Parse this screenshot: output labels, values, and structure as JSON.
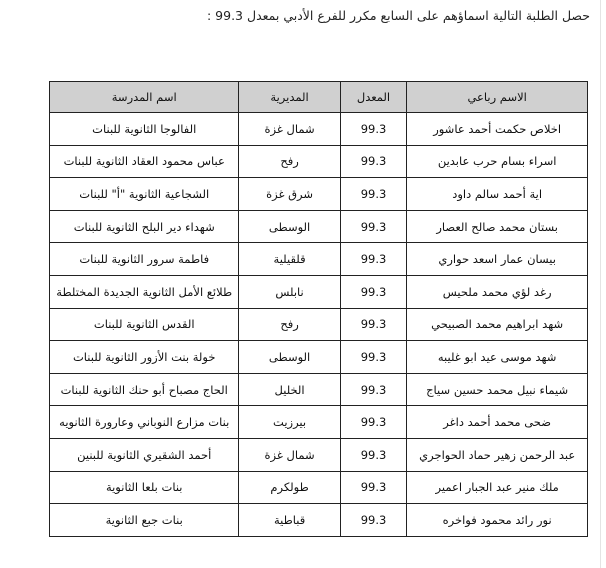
{
  "title": "حصل الطلبة التالية اسماؤهم على السابع مكرر للفرع الأدبي بمعدل 99.3 :",
  "table": {
    "headers": [
      "الاسم رباعي",
      "المعدل",
      "المديرية",
      "اسم المدرسة"
    ],
    "rows": [
      [
        "اخلاص حكمت أحمد عاشور",
        "99.3",
        "شمال غزة",
        "الفالوجا الثانوية للبنات"
      ],
      [
        "اسراء بسام حرب عابدين",
        "99.3",
        "رفح",
        "عباس محمود العقاد الثانوية للبنات"
      ],
      [
        "اية أحمد سالم داود",
        "99.3",
        "شرق غزة",
        "الشجاعية الثانوية \"أ\" للبنات"
      ],
      [
        "بستان محمد صالح العصار",
        "99.3",
        "الوسطى",
        "شهداء دير البلح الثانوية للبنات"
      ],
      [
        "بيسان عمار اسعد حواري",
        "99.3",
        "قلقيلية",
        "فاطمة سرور الثانوية للبنات"
      ],
      [
        "رغد لؤي محمد ملحيس",
        "99.3",
        "نابلس",
        "طلائع الأمل الثانوية الجديدة المختلطة"
      ],
      [
        "شهد ابراهيم محمد الصبيحي",
        "99.3",
        "رفح",
        "القدس الثانوية للبنات"
      ],
      [
        "شهد موسى عيد ابو غليبه",
        "99.3",
        "الوسطى",
        "خولة بنت الأزور الثانوية للبنات"
      ],
      [
        "شيماء نبيل محمد حسين سياج",
        "99.3",
        "الخليل",
        "الحاج مصباح أبو حنك الثانوية  للبنات"
      ],
      [
        "ضحى محمد أحمد داغر",
        "99.3",
        "بيرزيت",
        "بنات مزارع النوباني وعارورة الثانويه"
      ],
      [
        "عبد الرحمن زهير حماد الحواجري",
        "99.3",
        "شمال غزة",
        "أحمد الشقيري الثانوية للبنين"
      ],
      [
        "ملك منير عبد الجبار اعمير",
        "99.3",
        "طولكرم",
        "بنات بلعا الثانوية"
      ],
      [
        "نور رائد محمود فواخره",
        "99.3",
        "قباطية",
        "بنات جبع الثانوية"
      ]
    ]
  }
}
